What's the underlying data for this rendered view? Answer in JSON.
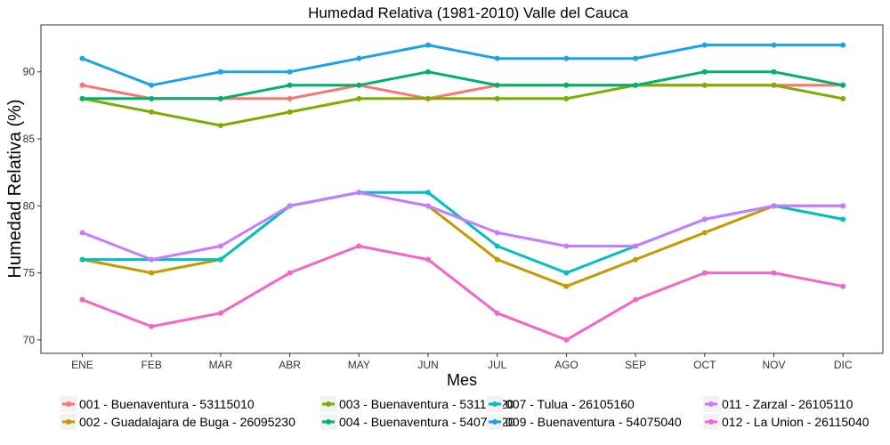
{
  "chart_data": {
    "type": "line",
    "title": "Humedad Relativa (1981-2010)  Valle del Cauca",
    "xlabel": "Mes",
    "ylabel": "Humedad Relativa  (%)",
    "categories": [
      "ENE",
      "FEB",
      "MAR",
      "ABR",
      "MAY",
      "JUN",
      "JUL",
      "AGO",
      "SEP",
      "OCT",
      "NOV",
      "DIC"
    ],
    "ylim": [
      69,
      93.5
    ],
    "yticks": [
      70,
      75,
      80,
      85,
      90
    ],
    "grid": false,
    "legend_position": "bottom",
    "series": [
      {
        "name": "001 - Buenaventura - 53115010",
        "color": "#F8766D",
        "values": [
          89,
          88,
          88,
          88,
          89,
          88,
          89,
          89,
          89,
          89,
          89,
          89
        ]
      },
      {
        "name": "002 - Guadalajara de Buga - 26095230",
        "color": "#C49A00",
        "values": [
          76,
          75,
          76,
          80,
          81,
          80,
          76,
          74,
          76,
          78,
          80,
          80
        ]
      },
      {
        "name": "003 - Buenaventura - 53115020",
        "color": "#7CAE00",
        "values": [
          88,
          87,
          86,
          87,
          88,
          88,
          88,
          88,
          89,
          89,
          89,
          88
        ]
      },
      {
        "name": "004 - Buenaventura - 54075020",
        "color": "#00B16A",
        "values": [
          88,
          88,
          88,
          89,
          89,
          90,
          89,
          89,
          89,
          90,
          90,
          89
        ]
      },
      {
        "name": "007 - Tulua - 26105160",
        "color": "#00BFC4",
        "values": [
          76,
          76,
          76,
          80,
          81,
          81,
          77,
          75,
          77,
          79,
          80,
          79
        ]
      },
      {
        "name": "009 - Buenaventura - 54075040",
        "color": "#1AA3E8",
        "values": [
          91,
          89,
          90,
          90,
          91,
          92,
          91,
          91,
          91,
          92,
          92,
          92
        ]
      },
      {
        "name": "011 - Zarzal - 26105110",
        "color": "#C77CFF",
        "values": [
          78,
          76,
          77,
          80,
          81,
          80,
          78,
          77,
          77,
          79,
          80,
          80
        ]
      },
      {
        "name": "012 - La Union - 26115040",
        "color": "#F564C8",
        "values": [
          73,
          71,
          72,
          75,
          77,
          76,
          72,
          70,
          73,
          75,
          75,
          74
        ]
      }
    ]
  }
}
